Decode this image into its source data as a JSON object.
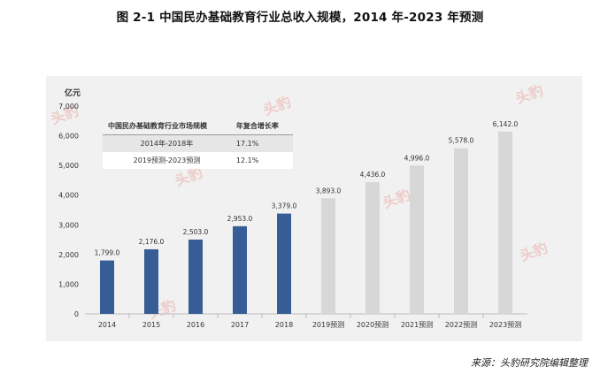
{
  "title": "图  2-1  中国民办基础教育行业总收入规模，2014 年-2023 年预测",
  "source": "来源：头豹研究院编辑整理",
  "watermark": "头豹",
  "cagr_table": {
    "headers": [
      "中国民办基础教育行业市场规模",
      "年复合增长率"
    ],
    "rows": [
      {
        "period": "2014年-2018年",
        "rate": "17.1%"
      },
      {
        "period": "2019预测-2023预测",
        "rate": "12.1%"
      }
    ]
  },
  "colors": {
    "actual": "#365d95",
    "forecast": "#d7d7d7",
    "panel": "#f1f1f1",
    "watermark": "#e8a09a"
  },
  "chart_data": {
    "type": "bar",
    "ylabel": "亿元",
    "ylim": [
      0,
      7000
    ],
    "yticks": [
      "0",
      "1,000",
      "2,000",
      "3,000",
      "4,000",
      "5,000",
      "6,000",
      "7,000"
    ],
    "categories": [
      "2014",
      "2015",
      "2016",
      "2017",
      "2018",
      "2019预测",
      "2020预测",
      "2021预测",
      "2022预测",
      "2023预测"
    ],
    "values": [
      1799.0,
      2176.0,
      2503.0,
      2953.0,
      3379.0,
      3893.0,
      4436.0,
      4996.0,
      5578.0,
      6142.0
    ],
    "value_labels": [
      "1,799.0",
      "2,176.0",
      "2,503.0",
      "2,953.0",
      "3,379.0",
      "3,893.0",
      "4,436.0",
      "4,996.0",
      "5,578.0",
      "6,142.0"
    ],
    "forecast": [
      false,
      false,
      false,
      false,
      false,
      true,
      true,
      true,
      true,
      true
    ],
    "grid": false
  }
}
